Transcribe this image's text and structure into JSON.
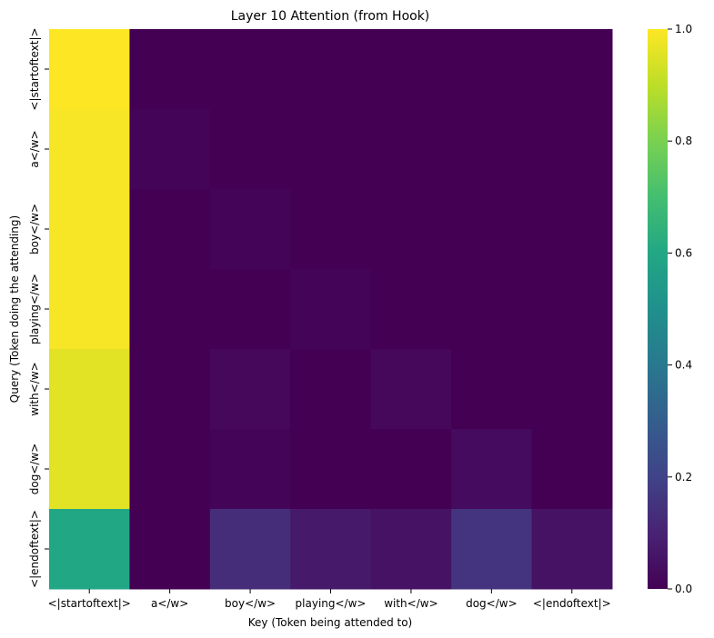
{
  "chart_data": {
    "type": "heatmap",
    "title": "Layer 10 Attention (from Hook)",
    "xlabel": "Key (Token being attended to)",
    "ylabel": "Query (Token doing the attending)",
    "x_tokens": [
      "<|startoftext|>",
      "a</w>",
      "boy</w>",
      "playing</w>",
      "with</w>",
      "dog</w>",
      "<|endoftext|>"
    ],
    "y_tokens": [
      "<|startoftext|>",
      "a</w>",
      "boy</w>",
      "playing</w>",
      "with</w>",
      "dog</w>",
      "<|endoftext|>"
    ],
    "values": [
      [
        1.0,
        0.0,
        0.0,
        0.0,
        0.0,
        0.0,
        0.0
      ],
      [
        0.99,
        0.01,
        0.0,
        0.0,
        0.0,
        0.0,
        0.0
      ],
      [
        0.99,
        0.0,
        0.01,
        0.0,
        0.0,
        0.0,
        0.0
      ],
      [
        0.99,
        0.0,
        0.0,
        0.01,
        0.0,
        0.0,
        0.0
      ],
      [
        0.96,
        0.0,
        0.02,
        0.0,
        0.02,
        0.0,
        0.0
      ],
      [
        0.96,
        0.0,
        0.01,
        0.0,
        0.0,
        0.03,
        0.0
      ],
      [
        0.6,
        0.0,
        0.13,
        0.07,
        0.05,
        0.15,
        0.05
      ]
    ],
    "colorbar": {
      "colormap": "viridis",
      "range": [
        0.0,
        1.0
      ],
      "ticks": [
        "0.0",
        "0.2",
        "0.4",
        "0.6",
        "0.8",
        "1.0"
      ]
    },
    "grid": false
  }
}
